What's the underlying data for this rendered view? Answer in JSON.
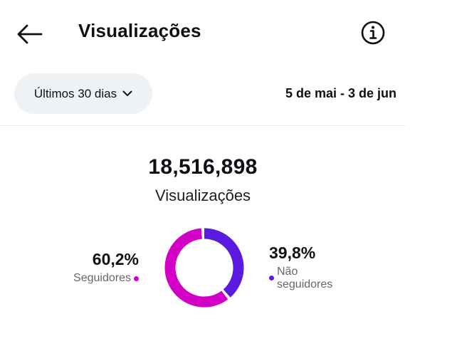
{
  "header": {
    "title": "Visualizações",
    "back_icon": "arrow-left-icon",
    "info_icon": "info-circle-icon"
  },
  "filter": {
    "period_label": "Últimos 30 dias",
    "date_range": "5 de mai - 3 de jun"
  },
  "summary": {
    "total": "18,516,898",
    "total_label": "Visualizações"
  },
  "breakdown": {
    "followers": {
      "percent": "60,2%",
      "label": "Seguidores",
      "value": 60.2,
      "color": "#d300c5"
    },
    "non_followers": {
      "percent": "39,8%",
      "label_line1": "Não",
      "label_line2": "seguidores",
      "value": 39.8,
      "color": "#5b1ae0"
    }
  }
}
